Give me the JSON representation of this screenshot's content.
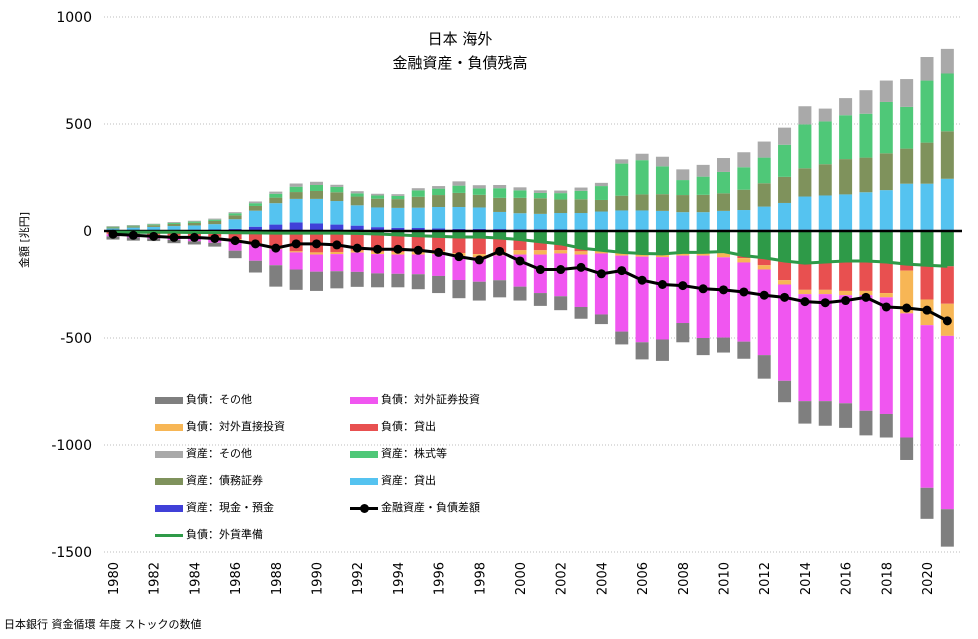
{
  "chart_data": {
    "type": "bar",
    "title": "日本 海外",
    "subtitle": "金融資産・負債残高",
    "ylabel": "金額 [兆円]",
    "ylim": [
      -1500,
      1000
    ],
    "yticks": [
      1000,
      500,
      0,
      -500,
      -1000,
      -1500
    ],
    "grid": true,
    "stacked": true,
    "legend_placement": "bottom-left",
    "x_tick_labels": [
      "1980",
      "1982",
      "1984",
      "1986",
      "1988",
      "1990",
      "1992",
      "1994",
      "1996",
      "1998",
      "2000",
      "2002",
      "2004",
      "2006",
      "2008",
      "2010",
      "2012",
      "2014",
      "2016",
      "2018",
      "2020"
    ],
    "categories": [
      "1980",
      "1981",
      "1982",
      "1983",
      "1984",
      "1985",
      "1986",
      "1987",
      "1988",
      "1989",
      "1990",
      "1991",
      "1992",
      "1993",
      "1994",
      "1995",
      "1996",
      "1997",
      "1998",
      "1999",
      "2000",
      "2001",
      "2002",
      "2003",
      "2004",
      "2005",
      "2006",
      "2007",
      "2008",
      "2009",
      "2010",
      "2011",
      "2012",
      "2013",
      "2014",
      "2015",
      "2016",
      "2017",
      "2018",
      "2019",
      "2020",
      "2021"
    ],
    "asset_series": [
      {
        "name": "資産：現金・預金",
        "color": "#4040d8",
        "values": [
          2,
          3,
          4,
          5,
          6,
          7,
          10,
          20,
          30,
          40,
          35,
          30,
          25,
          18,
          15,
          14,
          12,
          10,
          10,
          9,
          8,
          8,
          7,
          6,
          6,
          6,
          6,
          6,
          6,
          6,
          6,
          6,
          6,
          6,
          6,
          6,
          6,
          6,
          6,
          6,
          6,
          6
        ]
      },
      {
        "name": "資産：貸出",
        "color": "#55c3f0",
        "values": [
          10,
          13,
          15,
          18,
          20,
          25,
          45,
          75,
          100,
          110,
          115,
          110,
          95,
          92,
          93,
          95,
          100,
          102,
          100,
          80,
          75,
          72,
          77,
          78,
          85,
          90,
          90,
          88,
          82,
          82,
          88,
          92,
          108,
          125,
          155,
          160,
          165,
          175,
          185,
          215,
          215,
          238
        ]
      },
      {
        "name": "資産：債務証券",
        "color": "#7f925c",
        "values": [
          5,
          6,
          8,
          10,
          12,
          15,
          18,
          22,
          26,
          32,
          37,
          41,
          41,
          41,
          41,
          51,
          56,
          66,
          59,
          66,
          72,
          73,
          63,
          64,
          54,
          69,
          75,
          78,
          80,
          81,
          82,
          95,
          109,
          122,
          132,
          146,
          165,
          162,
          172,
          164,
          192,
          222
        ]
      },
      {
        "name": "資産：株式等",
        "color": "#4fc878",
        "values": [
          3,
          3,
          4,
          5,
          6,
          6,
          10,
          13,
          18,
          25,
          28,
          25,
          15,
          15,
          15,
          30,
          30,
          34,
          30,
          45,
          35,
          25,
          30,
          40,
          65,
          150,
          160,
          130,
          70,
          85,
          100,
          105,
          120,
          150,
          205,
          200,
          205,
          205,
          240,
          195,
          290,
          270
        ]
      },
      {
        "name": "資産：その他",
        "color": "#a9a9a9",
        "values": [
          3,
          3,
          3,
          4,
          4,
          5,
          5,
          8,
          10,
          15,
          15,
          10,
          10,
          8,
          8,
          10,
          12,
          20,
          15,
          15,
          14,
          12,
          12,
          15,
          15,
          20,
          30,
          45,
          50,
          55,
          65,
          70,
          75,
          80,
          85,
          60,
          80,
          110,
          100,
          130,
          110,
          115
        ]
      }
    ],
    "liability_series": [
      {
        "name": "負債：外貨準備",
        "color": "#2e9a48",
        "values": [
          -5,
          -6,
          -6,
          -6,
          -7,
          -7,
          -8,
          -9,
          -10,
          -10,
          -10,
          -10,
          -11,
          -14,
          -18,
          -22,
          -25,
          -28,
          -28,
          -33,
          -40,
          -50,
          -60,
          -80,
          -90,
          -100,
          -105,
          -107,
          -100,
          -100,
          -96,
          -115,
          -125,
          -140,
          -150,
          -145,
          -140,
          -140,
          -145,
          -155,
          -160,
          -165
        ]
      },
      {
        "name": "負債：貸出",
        "color": "#e85050",
        "values": [
          -8,
          -10,
          -12,
          -15,
          -18,
          -20,
          -30,
          -50,
          -70,
          -85,
          -90,
          -88,
          -80,
          -82,
          -80,
          -75,
          -70,
          -75,
          -80,
          -65,
          -50,
          -40,
          -30,
          -15,
          0,
          0,
          0,
          0,
          0,
          0,
          -7,
          -12,
          -35,
          -90,
          -125,
          -130,
          -140,
          -140,
          -145,
          -30,
          -160,
          -175
        ]
      },
      {
        "name": "負債：対外直接投資",
        "color": "#f7b655",
        "values": [
          -2,
          -2,
          -2,
          -3,
          -3,
          -3,
          -4,
          -5,
          -5,
          -5,
          -10,
          -10,
          -10,
          -12,
          -12,
          -13,
          -13,
          -15,
          -15,
          -16,
          -20,
          -20,
          -15,
          -15,
          -15,
          -15,
          -15,
          -15,
          -15,
          -15,
          -20,
          -20,
          -20,
          -20,
          -20,
          -20,
          -20,
          -20,
          -20,
          -200,
          -120,
          -150
        ]
      },
      {
        "name": "負債：対外証券投資",
        "color": "#f056f0",
        "values": [
          -10,
          -12,
          -15,
          -18,
          -20,
          -25,
          -50,
          -75,
          -75,
          -80,
          -80,
          -80,
          -90,
          -90,
          -90,
          -92,
          -102,
          -111,
          -114,
          -116,
          -150,
          -180,
          -200,
          -245,
          -285,
          -355,
          -400,
          -385,
          -315,
          -385,
          -375,
          -370,
          -400,
          -450,
          -500,
          -500,
          -505,
          -540,
          -545,
          -580,
          -760,
          -810
        ]
      },
      {
        "name": "負債：その他",
        "color": "#7f7f7f",
        "values": [
          -15,
          -15,
          -12,
          -15,
          -15,
          -18,
          -35,
          -55,
          -100,
          -95,
          -90,
          -80,
          -70,
          -65,
          -63,
          -70,
          -80,
          -85,
          -88,
          -80,
          -65,
          -60,
          -65,
          -55,
          -45,
          -60,
          -80,
          -100,
          -90,
          -80,
          -70,
          -80,
          -110,
          -100,
          -105,
          -115,
          -115,
          -115,
          -110,
          -105,
          -145,
          -175
        ]
      }
    ],
    "line_series": {
      "name": "金融資産・負債差額",
      "color": "#000000",
      "values": [
        -15,
        -20,
        -25,
        -30,
        -30,
        -35,
        -45,
        -60,
        -80,
        -60,
        -60,
        -65,
        -80,
        -85,
        -85,
        -90,
        -100,
        -120,
        -135,
        -95,
        -140,
        -180,
        -180,
        -170,
        -200,
        -185,
        -230,
        -250,
        -255,
        -270,
        -275,
        -285,
        -300,
        -310,
        -330,
        -335,
        -325,
        -310,
        -355,
        -360,
        -370,
        -420
      ]
    },
    "legend": [
      {
        "label": "負債：その他",
        "type": "box",
        "color": "#7f7f7f"
      },
      {
        "label": "負債：対外証券投資",
        "type": "box",
        "color": "#f056f0"
      },
      {
        "label": "負債：対外直接投資",
        "type": "box",
        "color": "#f7b655"
      },
      {
        "label": "負債：貸出",
        "type": "box",
        "color": "#e85050"
      },
      {
        "label": "資産：その他",
        "type": "box",
        "color": "#a9a9a9"
      },
      {
        "label": "資産：株式等",
        "type": "box",
        "color": "#4fc878"
      },
      {
        "label": "資産：債務証券",
        "type": "box",
        "color": "#7f925c"
      },
      {
        "label": "資産：貸出",
        "type": "box",
        "color": "#55c3f0"
      },
      {
        "label": "資産：現金・預金",
        "type": "box",
        "color": "#4040d8"
      },
      {
        "label": "金融資産・負債差額",
        "type": "marker-line",
        "color": "#000000"
      },
      {
        "label": "負債：外貨準備",
        "type": "line",
        "color": "#2e9a48"
      }
    ]
  },
  "source_note": "日本銀行 資金循環 年度 ストックの数値"
}
